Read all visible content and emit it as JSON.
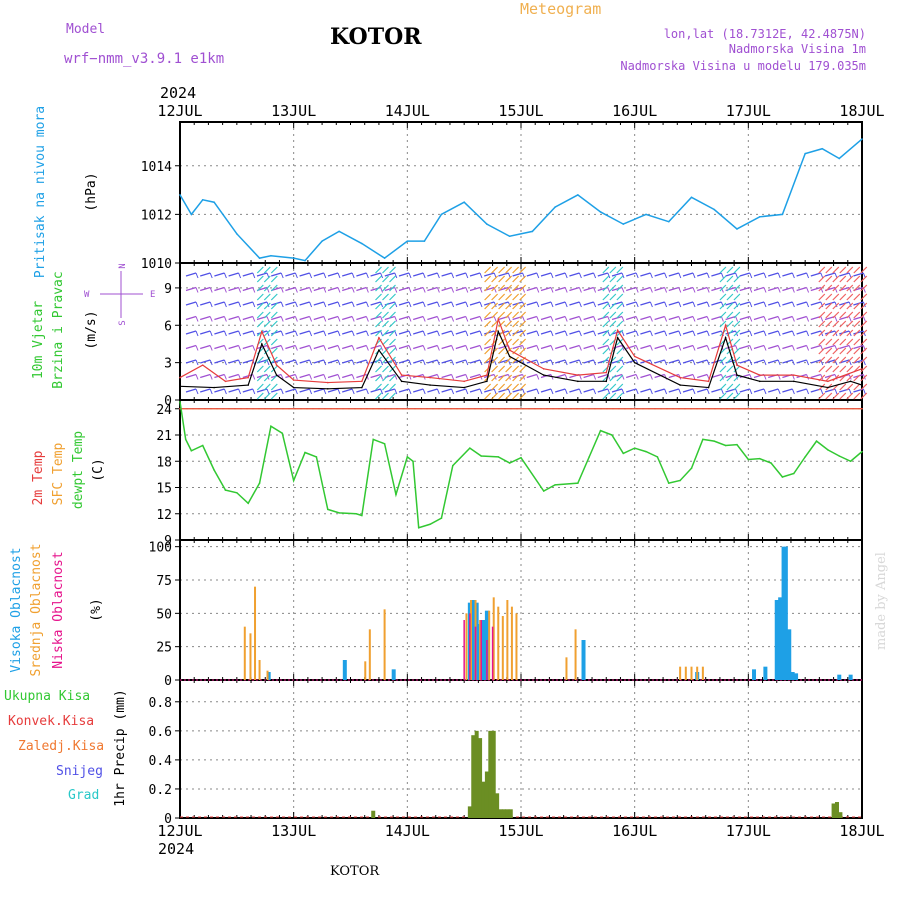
{
  "header": {
    "model_label": "Model",
    "model_name": "wrf−nmm_v3.9.1  e1km",
    "location_title": "KOTOR",
    "meteogram_label": "Meteogram",
    "coords": "lon,lat (18.7312E, 42.4875N)",
    "elevation": "Nadmorska Visina 1m",
    "model_elevation": "Nadmorska Visina u modelu 179.035m",
    "year_top": "2024"
  },
  "footer": {
    "year_bottom": "2024",
    "location_bottom": "KOTOR",
    "watermark": "made by Angel"
  },
  "colors": {
    "pressure": "#1ea0e6",
    "temp2m": "#e63c3c",
    "sfc_temp": "#f0a030",
    "dewpoint": "#32c832",
    "wind_speed": "#000000",
    "gust": "#e63c3c",
    "high_cloud": "#1ea0e6",
    "mid_cloud": "#f0a030",
    "low_cloud": "#e6148c",
    "total_precip": "#32a032",
    "conv_precip": "#e63c3c",
    "frozen_precip": "#f07830",
    "snow": "#5050e6",
    "hail": "#28c8c8",
    "title": "#000000",
    "purple": "#a050d2",
    "orange": "#f0b050"
  },
  "chart_data": [
    {
      "type": "line",
      "panel": "pressure",
      "ylabel_left": "Pritisak na nivou mora",
      "ylabel_unit": "(hPa)",
      "ylim": [
        1010,
        1015.8
      ],
      "yticks": [
        1010,
        1012,
        1014
      ],
      "xticks": [
        "12JUL",
        "13JUL",
        "14JUL",
        "15JUL",
        "16JUL",
        "17JUL",
        "18JUL"
      ],
      "grid": true,
      "series": [
        {
          "x": [
            0,
            0.1,
            0.2,
            0.3,
            0.5,
            0.7,
            0.8,
            1.0,
            1.1,
            1.25,
            1.4,
            1.6,
            1.8,
            2.0,
            2.15,
            2.3,
            2.5,
            2.7,
            2.9,
            3.1,
            3.3,
            3.5,
            3.7,
            3.9,
            4.1,
            4.3,
            4.5,
            4.7,
            4.9,
            5.1,
            5.3,
            5.5,
            5.65,
            5.8,
            6.0
          ],
          "values": [
            1012.8,
            1012.0,
            1012.6,
            1012.5,
            1011.2,
            1010.2,
            1010.3,
            1010.2,
            1010.1,
            1010.9,
            1011.3,
            1010.8,
            1010.2,
            1010.9,
            1010.9,
            1012.0,
            1012.5,
            1011.6,
            1011.1,
            1011.3,
            1012.3,
            1012.8,
            1012.1,
            1011.6,
            1012.0,
            1011.7,
            1012.7,
            1012.2,
            1011.4,
            1011.9,
            1012.0,
            1014.5,
            1014.7,
            1014.3,
            1015.1
          ]
        }
      ]
    },
    {
      "type": "line",
      "panel": "wind",
      "ylabel_left": "10m Vjetar",
      "ylabel_left2": "Brzina i Pravac",
      "ylabel_unit": "(m/s)",
      "compass": {
        "n": "N",
        "s": "S",
        "w": "W",
        "e": "E"
      },
      "ylim": [
        0,
        11
      ],
      "yticks": [
        0,
        3,
        6,
        9
      ],
      "series": [
        {
          "name": "speed",
          "x": [
            0,
            0.3,
            0.6,
            0.72,
            0.85,
            1.0,
            1.3,
            1.6,
            1.75,
            1.95,
            2.2,
            2.5,
            2.7,
            2.8,
            2.9,
            3.2,
            3.5,
            3.75,
            3.85,
            4.0,
            4.4,
            4.65,
            4.8,
            4.9,
            5.1,
            5.4,
            5.7,
            5.9,
            6.0
          ],
          "values": [
            1.1,
            1.0,
            1.2,
            4.5,
            2.0,
            1.0,
            0.9,
            1.0,
            4.0,
            1.5,
            1.2,
            1.0,
            1.5,
            5.5,
            3.5,
            2.0,
            1.5,
            1.5,
            5.0,
            3.0,
            1.2,
            1.0,
            5.0,
            2.0,
            1.5,
            1.5,
            1.0,
            1.5,
            1.2
          ]
        },
        {
          "name": "gust",
          "x": [
            0,
            0.2,
            0.4,
            0.6,
            0.72,
            0.85,
            1.0,
            1.3,
            1.6,
            1.75,
            1.95,
            2.2,
            2.5,
            2.7,
            2.8,
            2.9,
            3.2,
            3.5,
            3.75,
            3.85,
            4.0,
            4.4,
            4.65,
            4.8,
            4.9,
            5.1,
            5.4,
            5.7,
            6.0
          ],
          "values": [
            1.8,
            2.8,
            1.5,
            1.8,
            5.5,
            2.8,
            1.6,
            1.4,
            1.5,
            5.0,
            2.0,
            1.8,
            1.5,
            2.0,
            6.5,
            4.0,
            2.5,
            2.0,
            2.2,
            5.6,
            3.5,
            1.8,
            1.5,
            6.0,
            2.8,
            2.0,
            2.0,
            1.5,
            2.5
          ]
        }
      ]
    },
    {
      "type": "line",
      "panel": "temperature",
      "ylabel_left": "2m Temp",
      "ylabel_left2": "SFC Temp",
      "ylabel_left3": "dewpt Temp",
      "ylabel_unit": "(C)",
      "ylim": [
        9,
        25
      ],
      "yticks": [
        9,
        12,
        15,
        18,
        21,
        24
      ],
      "series": [
        {
          "name": "2m Temp",
          "x": [
            0,
            6.0
          ],
          "values": [
            24,
            24
          ]
        },
        {
          "name": "SFC Temp",
          "x": [
            0,
            6.0
          ],
          "values": [
            24,
            24
          ]
        },
        {
          "name": "dewpt Temp",
          "x": [
            0,
            0.05,
            0.1,
            0.2,
            0.3,
            0.4,
            0.5,
            0.6,
            0.7,
            0.8,
            0.9,
            1.0,
            1.1,
            1.2,
            1.3,
            1.4,
            1.55,
            1.6,
            1.7,
            1.8,
            1.9,
            2.0,
            2.05,
            2.1,
            2.2,
            2.3,
            2.4,
            2.55,
            2.65,
            2.8,
            2.9,
            3.0,
            3.2,
            3.3,
            3.5,
            3.6,
            3.7,
            3.8,
            3.9,
            4.0,
            4.1,
            4.2,
            4.3,
            4.4,
            4.5,
            4.6,
            4.7,
            4.8,
            4.9,
            5.0,
            5.1,
            5.2,
            5.3,
            5.4,
            5.5,
            5.6,
            5.7,
            5.8,
            5.9,
            6.0
          ],
          "values": [
            24.8,
            20.5,
            19.2,
            19.8,
            17.0,
            14.7,
            14.4,
            13.2,
            15.5,
            22.0,
            21.2,
            15.8,
            19.0,
            18.5,
            12.5,
            12.1,
            12.0,
            11.8,
            20.5,
            20.0,
            14.2,
            18.5,
            18.0,
            10.4,
            10.8,
            11.5,
            17.5,
            19.5,
            18.6,
            18.5,
            17.8,
            18.4,
            14.6,
            15.3,
            15.5,
            18.5,
            21.5,
            21.0,
            18.9,
            19.5,
            19.1,
            18.5,
            15.5,
            15.8,
            17.2,
            20.5,
            20.3,
            19.8,
            19.9,
            18.2,
            18.3,
            17.8,
            16.2,
            16.6,
            18.5,
            20.3,
            19.3,
            18.6,
            18.0,
            19.1
          ]
        }
      ]
    },
    {
      "type": "bar",
      "panel": "clouds",
      "ylabel_left": "Visoka Oblacnost",
      "ylabel_left2": "Srednja Oblacnost",
      "ylabel_left3": "Niska Oblacnost",
      "ylabel_unit": "(%)",
      "ylim": [
        0,
        105
      ],
      "yticks": [
        0,
        25,
        50,
        75,
        100
      ],
      "series": [
        {
          "name": "Visoka Oblacnost",
          "x": [
            0.78,
            1.45,
            1.88,
            2.55,
            2.58,
            2.61,
            2.64,
            2.67,
            2.7,
            3.55,
            4.55,
            5.05,
            5.15,
            5.25,
            5.28,
            5.31,
            5.33,
            5.36,
            5.39,
            5.42,
            5.8,
            5.9
          ],
          "values": [
            6,
            15,
            8,
            58,
            60,
            58,
            42,
            45,
            52,
            30,
            6,
            8,
            10,
            60,
            62,
            100,
            100,
            38,
            6,
            5,
            4,
            4
          ]
        },
        {
          "name": "Srednja Oblacnost",
          "x": [
            0.57,
            0.62,
            0.66,
            0.7,
            0.77,
            1.63,
            1.67,
            1.8,
            2.52,
            2.56,
            2.6,
            2.64,
            2.72,
            2.76,
            2.8,
            2.84,
            2.88,
            2.92,
            2.96,
            3.4,
            3.48,
            4.4,
            4.45,
            4.5,
            4.55,
            4.6
          ],
          "values": [
            40,
            35,
            70,
            15,
            7,
            14,
            38,
            53,
            50,
            60,
            60,
            45,
            52,
            62,
            55,
            48,
            60,
            55,
            50,
            17,
            38,
            10,
            10,
            10,
            10,
            10
          ]
        },
        {
          "name": "Niska Oblacnost",
          "x": [
            2.5,
            2.55,
            2.6,
            2.65,
            2.7,
            2.75
          ],
          "values": [
            45,
            50,
            40,
            45,
            30,
            40
          ]
        }
      ]
    },
    {
      "type": "bar",
      "panel": "precip",
      "ylabel_left": "Ukupna Kisa",
      "ylabel_left2": "Konvek.Kisa",
      "ylabel_left3": "Zaledj.Kisa",
      "ylabel_left4": "Snijeg",
      "ylabel_left5": "Grad",
      "ylabel_unit": "1hr Precip (mm)",
      "ylim": [
        0,
        0.95
      ],
      "yticks": [
        0,
        0.2,
        0.4,
        0.6,
        0.8
      ],
      "xticks_bottom": [
        "12JUL",
        "13JUL",
        "14JUL",
        "15JUL",
        "16JUL",
        "17JUL",
        "18JUL"
      ],
      "series": [
        {
          "name": "Ukupna Kisa",
          "x": [
            1.7,
            2.55,
            2.58,
            2.61,
            2.64,
            2.67,
            2.7,
            2.73,
            2.76,
            2.79,
            2.82,
            2.85,
            2.88,
            2.91,
            5.75,
            5.78,
            5.81
          ],
          "values": [
            0.05,
            0.08,
            0.57,
            0.6,
            0.55,
            0.25,
            0.32,
            0.6,
            0.6,
            0.17,
            0.06,
            0.06,
            0.06,
            0.06,
            0.1,
            0.11,
            0.04
          ]
        }
      ]
    }
  ]
}
